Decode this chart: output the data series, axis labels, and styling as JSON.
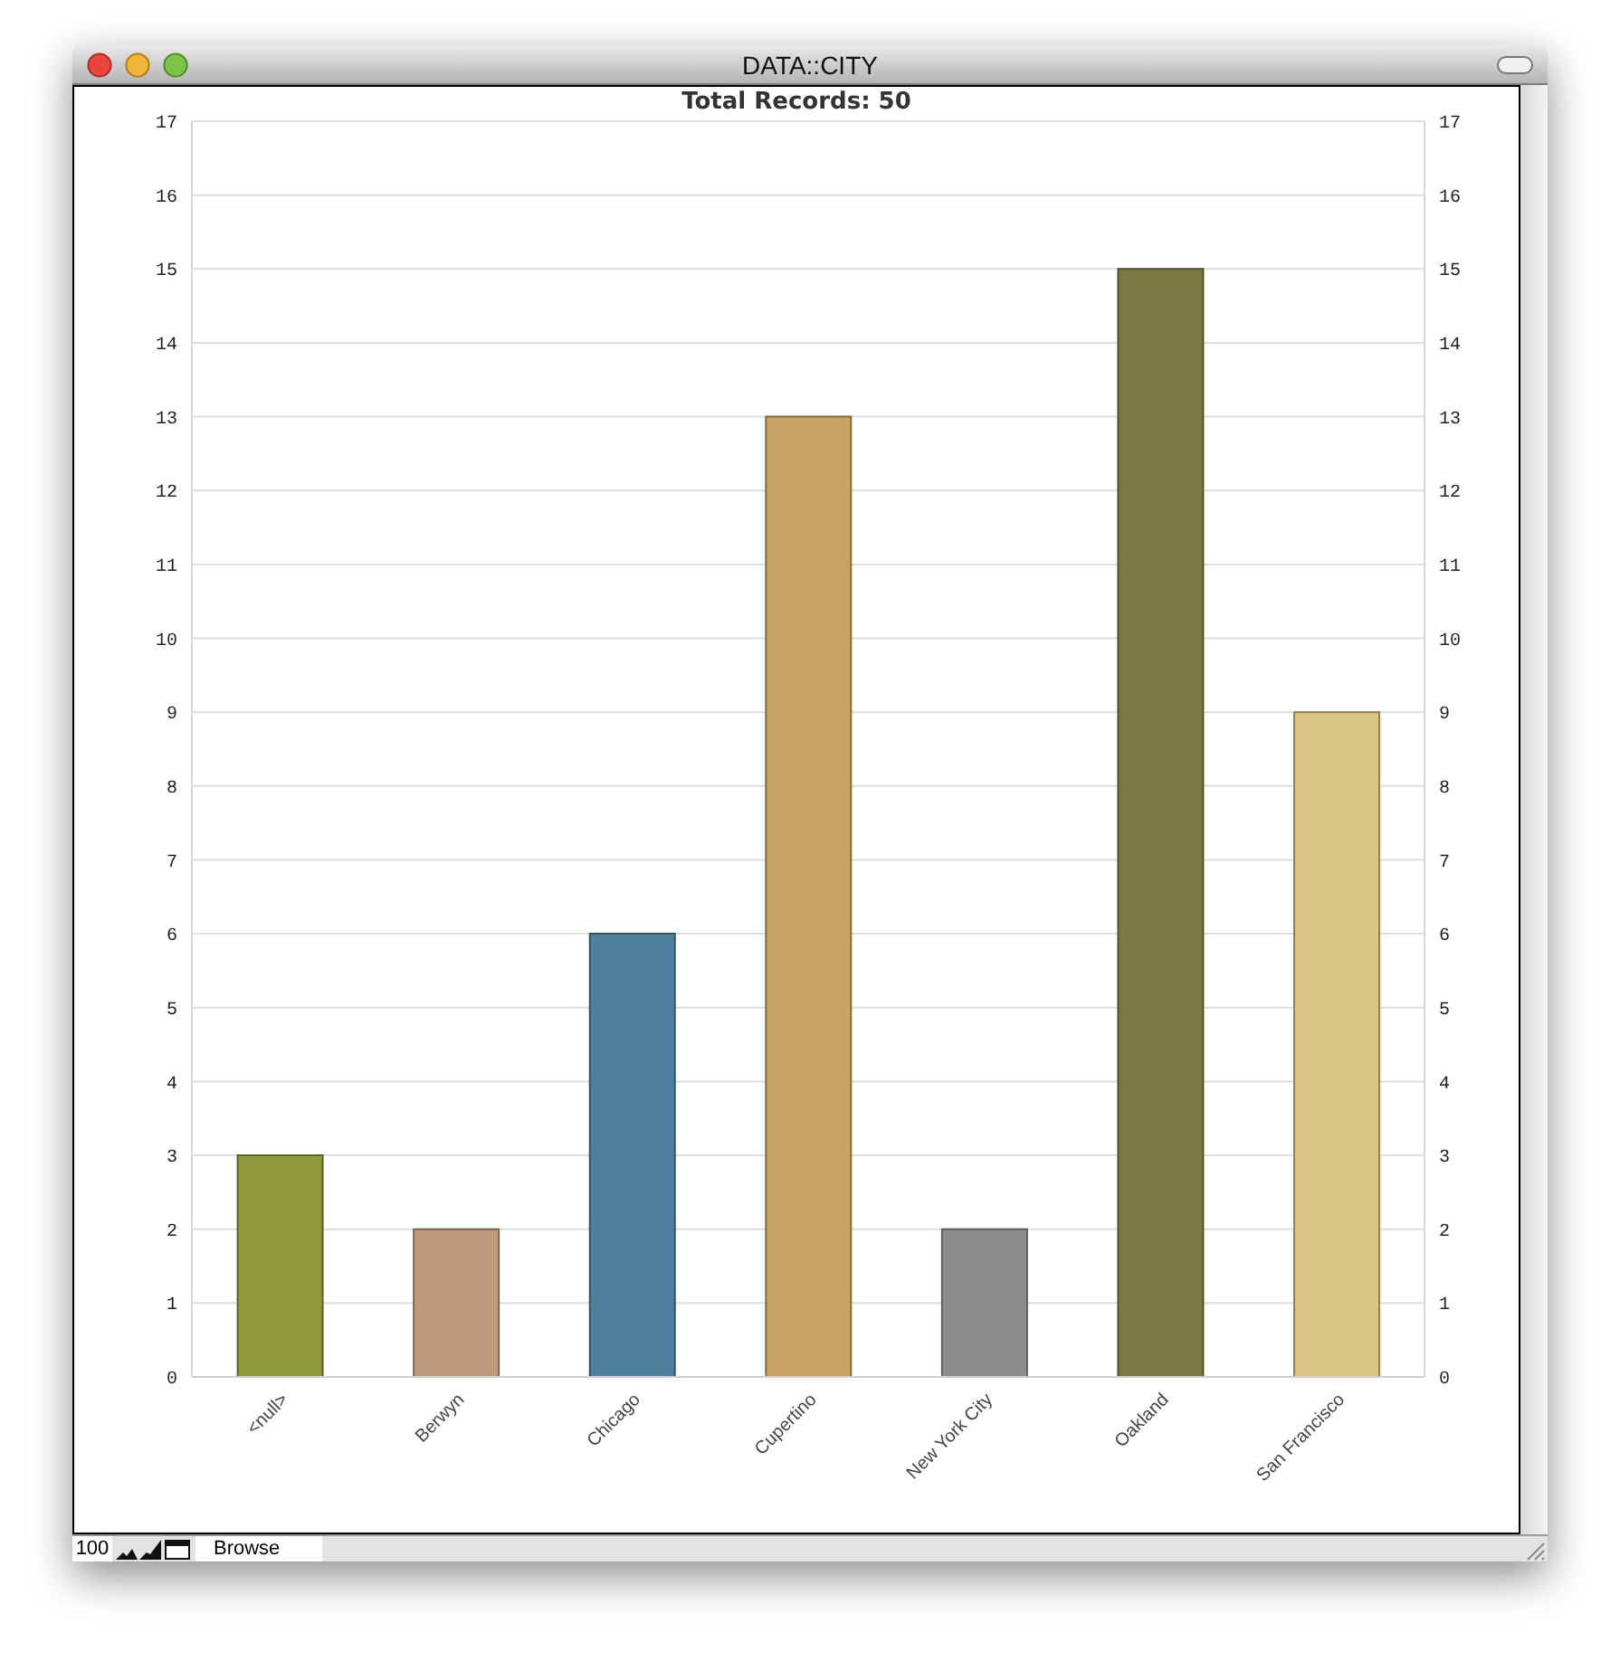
{
  "chart_data": {
    "type": "bar",
    "title": "Total Records: 50",
    "annotations": [
      "DATA::CITY",
      "100",
      "Browse"
    ],
    "categories": [
      "<null>",
      "Berwyn",
      "Chicago",
      "Cupertino",
      "New York City",
      "Oakland",
      "San Francisco"
    ],
    "values": [
      3,
      2,
      6,
      13,
      2,
      15,
      9
    ],
    "colors": [
      "#8f993e",
      "#be9b7c",
      "#4e7f9d",
      "#c9a365",
      "#8d8d8d",
      "#7a7941",
      "#dbc584"
    ],
    "ylim": [
      0,
      17
    ],
    "yticks": [
      0,
      1,
      2,
      3,
      4,
      5,
      6,
      7,
      8,
      9,
      10,
      11,
      12,
      13,
      14,
      15,
      16,
      17
    ],
    "y2lim": [
      0,
      17
    ],
    "y2ticks": [
      0,
      1,
      2,
      3,
      4,
      5,
      6,
      7,
      8,
      9,
      10,
      11,
      12,
      13,
      14,
      15,
      16,
      17
    ],
    "grid": "y"
  }
}
